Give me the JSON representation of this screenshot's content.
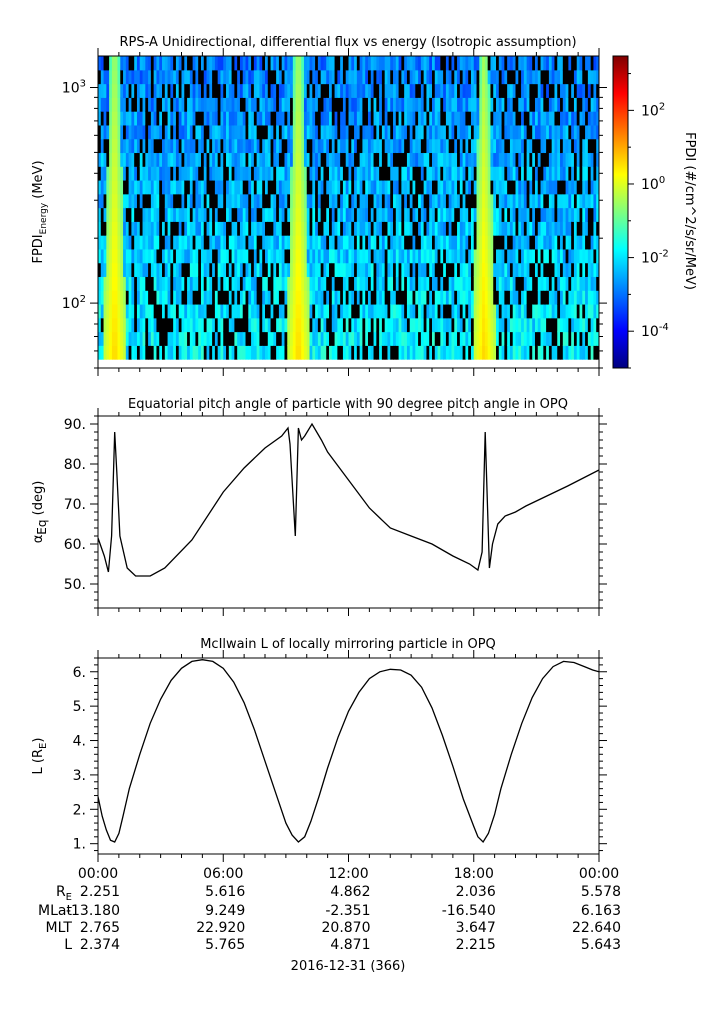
{
  "panels": {
    "spectrogram": {
      "title": "RPS-A Unidirectional, differential flux vs energy (Isotropic assumption)",
      "ylabel_main": "FPDI",
      "ylabel_sub": "Energy",
      "ylabel_unit": " (MeV)",
      "colorbar_label": "FPDI (#/cm^2/s/sr/MeV)"
    },
    "pitch": {
      "title": "Equatorial pitch angle of particle with 90 degree pitch angle in OPQ",
      "ylabel_main": "α",
      "ylabel_sub": "Eq",
      "ylabel_unit": " (deg)"
    },
    "lshell": {
      "title": "McIlwain L of locally mirroring particle in OPQ",
      "ylabel_main": "L (R",
      "ylabel_sub": "E",
      "ylabel_close": ")"
    }
  },
  "colors": {
    "line": "#000000",
    "colormap": [
      "#00007f",
      "#0000ff",
      "#007fff",
      "#00ffff",
      "#7fff7f",
      "#ffff00",
      "#ff7f00",
      "#ff0000",
      "#7f0000"
    ]
  },
  "ephemeris": {
    "row_labels": [
      "RE",
      "MLat",
      "MLT",
      "L"
    ],
    "row_label_main": [
      "R",
      "MLat",
      "MLT",
      "L"
    ],
    "row_label_sub": [
      "E",
      "",
      "",
      ""
    ],
    "time_labels": [
      "00:00",
      "06:00",
      "12:00",
      "18:00",
      "00:00"
    ],
    "values": [
      [
        "2.251",
        "5.616",
        "4.862",
        "2.036",
        "5.578"
      ],
      [
        "-13.180",
        "9.249",
        "-2.351",
        "-16.540",
        "6.163"
      ],
      [
        "2.765",
        "22.920",
        "20.870",
        "3.647",
        "22.640"
      ],
      [
        "2.374",
        "5.765",
        "4.871",
        "2.215",
        "5.643"
      ]
    ],
    "date_label": "2016-12-31 (366)"
  },
  "chart_data": [
    {
      "type": "heatmap",
      "title": "RPS-A Unidirectional, differential flux vs energy (Isotropic assumption)",
      "xlabel": "",
      "ylabel": "FPDI_Energy (MeV)",
      "y_scale": "log",
      "x_range_hours": [
        0,
        24
      ],
      "y_range": [
        50,
        1400
      ],
      "y_ticks": [
        100,
        1000
      ],
      "y_tick_labels": [
        "10^2",
        "10^3"
      ],
      "colorbar": {
        "scale": "log",
        "range": [
          1e-05,
          3000
        ],
        "ticks": [
          0.0001,
          0.01,
          1,
          100
        ],
        "tick_labels": [
          "10^-4",
          "10^-2",
          "10^0",
          "10^2"
        ],
        "label": "FPDI (#/cm^2/s/sr/MeV)"
      },
      "bright_bands_hours": [
        0.8,
        9.6,
        18.5
      ]
    },
    {
      "type": "line",
      "title": "Equatorial pitch angle of particle with 90 degree pitch angle in OPQ",
      "xlabel": "",
      "ylabel": "αEq (deg)",
      "ylim": [
        44,
        92
      ],
      "y_ticks": [
        50,
        60,
        70,
        80,
        90
      ],
      "x_hours": [
        0,
        0.3,
        0.5,
        0.65,
        0.8,
        0.9,
        1.05,
        1.4,
        1.8,
        2.5,
        3.2,
        4.5,
        6.0,
        7.0,
        8.0,
        8.8,
        9.1,
        9.2,
        9.45,
        9.6,
        9.75,
        9.9,
        10.25,
        10.7,
        11.0,
        12.0,
        13.0,
        14.0,
        15.0,
        16.0,
        17.0,
        17.8,
        18.2,
        18.4,
        18.55,
        18.75,
        18.9,
        19.15,
        19.5,
        20.0,
        20.5,
        21.5,
        22.5,
        24.0
      ],
      "y_values": [
        61.5,
        57,
        53,
        62,
        88,
        78,
        62,
        54,
        52,
        52,
        54,
        61,
        73,
        79,
        84,
        87,
        89,
        85,
        62,
        89,
        86,
        87,
        90,
        86,
        83,
        76,
        69,
        64,
        62,
        60,
        57,
        55,
        53.5,
        58,
        88,
        54,
        60,
        65,
        67,
        68,
        69.5,
        72,
        74.5,
        78.5
      ]
    },
    {
      "type": "line",
      "title": "McIlwain L of locally mirroring particle in OPQ",
      "xlabel": "",
      "ylabel": "L (RE)",
      "ylim": [
        0.7,
        6.4
      ],
      "y_ticks": [
        1,
        2,
        3,
        4,
        5,
        6
      ],
      "x_hours": [
        0,
        0.2,
        0.4,
        0.6,
        0.8,
        1.0,
        1.2,
        1.5,
        2.0,
        2.5,
        3.0,
        3.5,
        4.0,
        4.5,
        5.0,
        5.5,
        6.0,
        6.5,
        7.0,
        7.5,
        8.0,
        8.5,
        9.0,
        9.3,
        9.6,
        9.9,
        10.2,
        10.6,
        11.0,
        11.5,
        12.0,
        12.5,
        13.0,
        13.5,
        14.0,
        14.5,
        15.0,
        15.5,
        16.0,
        16.5,
        17.0,
        17.5,
        18.0,
        18.2,
        18.45,
        18.7,
        19.0,
        19.3,
        19.8,
        20.3,
        20.8,
        21.3,
        21.8,
        22.3,
        22.8,
        23.3,
        23.7,
        24.0
      ],
      "y_values": [
        2.37,
        1.8,
        1.4,
        1.1,
        1.05,
        1.3,
        1.8,
        2.6,
        3.6,
        4.5,
        5.2,
        5.75,
        6.1,
        6.3,
        6.35,
        6.3,
        6.1,
        5.7,
        5.1,
        4.3,
        3.4,
        2.5,
        1.6,
        1.25,
        1.05,
        1.2,
        1.65,
        2.4,
        3.2,
        4.1,
        4.85,
        5.4,
        5.8,
        6.0,
        6.07,
        6.05,
        5.9,
        5.55,
        4.95,
        4.15,
        3.25,
        2.3,
        1.5,
        1.2,
        1.05,
        1.3,
        1.85,
        2.6,
        3.6,
        4.5,
        5.25,
        5.8,
        6.15,
        6.3,
        6.27,
        6.15,
        6.05,
        6.0
      ]
    }
  ]
}
